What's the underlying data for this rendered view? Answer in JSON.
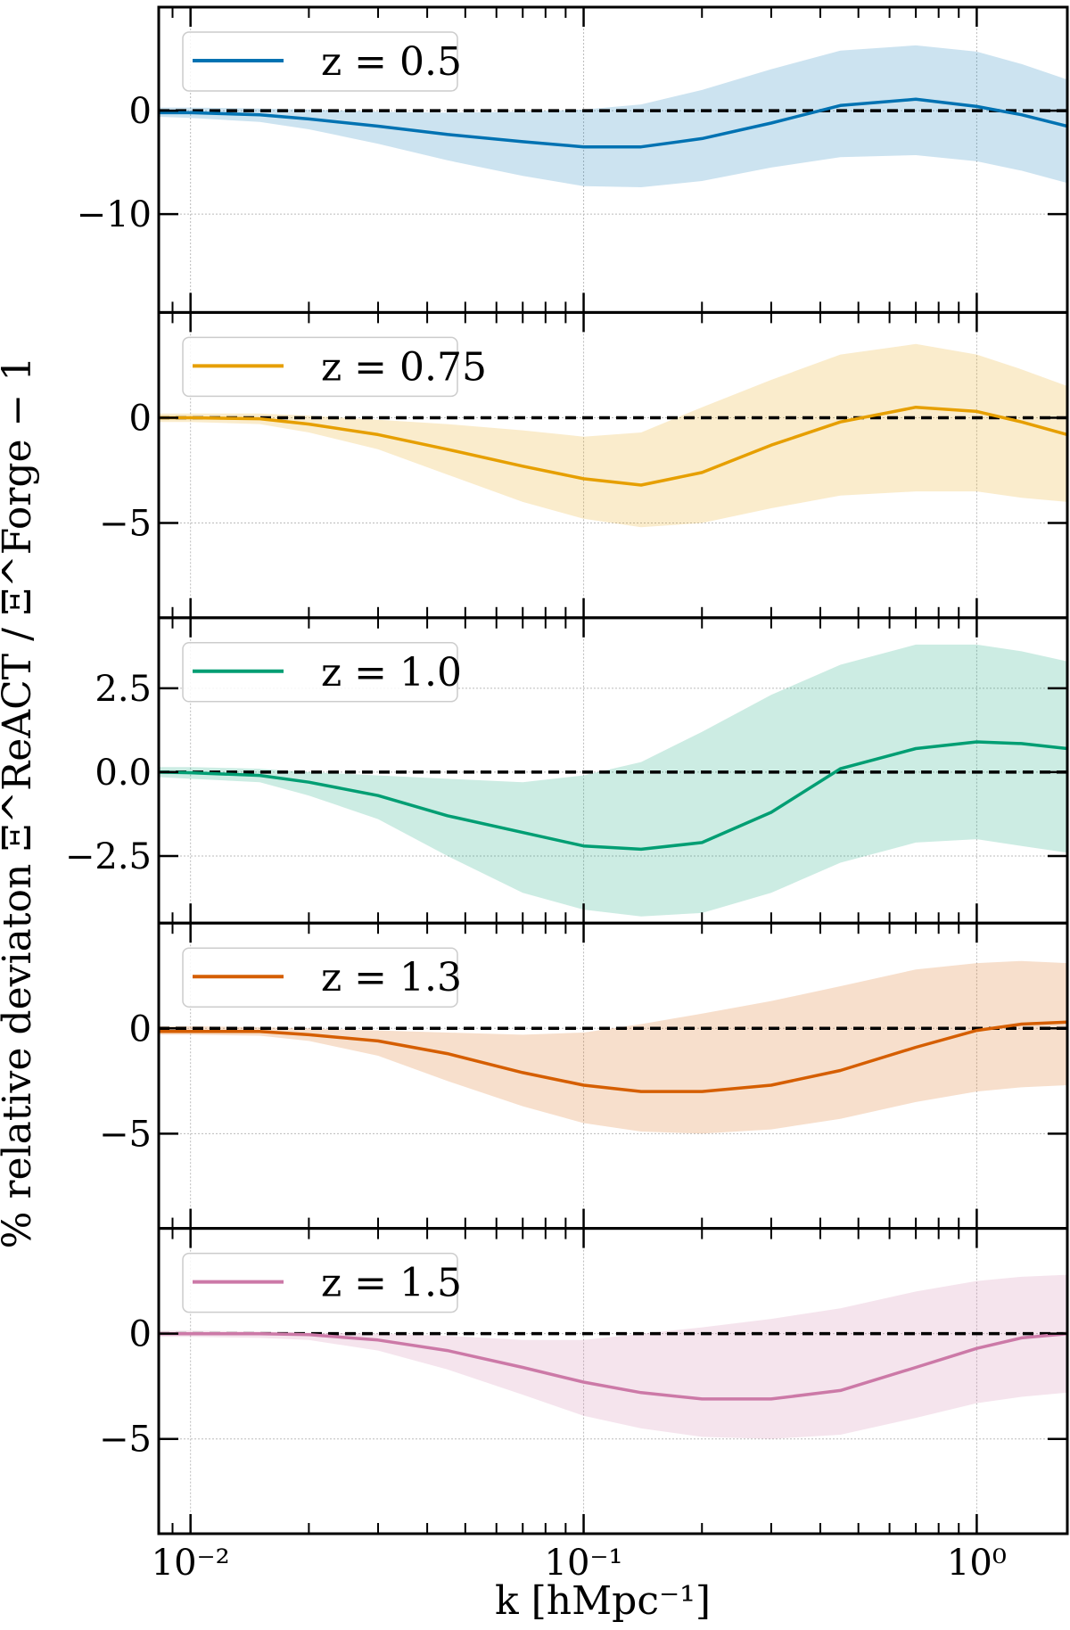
{
  "chart_data": {
    "type": "line",
    "xscale": "log",
    "xlim": [
      0.0083,
      1.7
    ],
    "xlabel": "k [hMpc⁻¹]",
    "ylabel": "% relative deviaton Ξ^ReACT / Ξ^Forge − 1",
    "x_tick_labels": [
      "10⁻²",
      "10⁻¹",
      "10⁰"
    ],
    "x": [
      0.0083,
      0.01,
      0.015,
      0.02,
      0.03,
      0.045,
      0.07,
      0.1,
      0.14,
      0.2,
      0.3,
      0.45,
      0.7,
      1.0,
      1.3,
      1.7
    ],
    "panels": [
      {
        "legend": "z = 0.5",
        "color": "#0072B2",
        "ylim": [
          -19.5,
          10
        ],
        "y_ticks": [
          0,
          -10
        ],
        "y_tick_labels": [
          "0",
          "−10"
        ],
        "values": [
          -0.2,
          -0.2,
          -0.4,
          -0.8,
          -1.5,
          -2.3,
          -3.0,
          -3.5,
          -3.5,
          -2.7,
          -1.2,
          0.5,
          1.1,
          0.4,
          -0.4,
          -1.5
        ],
        "band_upper": [
          0.3,
          0.3,
          0.2,
          0.1,
          -0.1,
          -0.2,
          -0.1,
          0.1,
          0.6,
          2.0,
          4.0,
          5.8,
          6.3,
          5.7,
          4.5,
          3.0
        ],
        "band_lower": [
          -0.6,
          -0.7,
          -1.1,
          -1.8,
          -3.2,
          -4.8,
          -6.3,
          -7.3,
          -7.4,
          -6.8,
          -5.5,
          -4.5,
          -4.3,
          -4.9,
          -5.8,
          -7.0
        ]
      },
      {
        "legend": "z = 0.75",
        "color": "#E69F00",
        "ylim": [
          -9.5,
          5
        ],
        "y_ticks": [
          0,
          -5
        ],
        "y_tick_labels": [
          "0",
          "−5"
        ],
        "values": [
          0,
          0,
          -0.05,
          -0.3,
          -0.8,
          -1.5,
          -2.3,
          -2.9,
          -3.2,
          -2.6,
          -1.3,
          -0.2,
          0.5,
          0.3,
          -0.2,
          -0.8
        ],
        "band_upper": [
          0.2,
          0.2,
          0.2,
          0.1,
          -0.1,
          -0.3,
          -0.6,
          -0.9,
          -0.7,
          0.5,
          1.8,
          3.0,
          3.5,
          3.0,
          2.3,
          1.5
        ],
        "band_lower": [
          -0.2,
          -0.2,
          -0.3,
          -0.7,
          -1.5,
          -2.7,
          -4.0,
          -4.8,
          -5.2,
          -5.0,
          -4.3,
          -3.7,
          -3.5,
          -3.5,
          -3.8,
          -4.0
        ]
      },
      {
        "legend": "z = 1.0",
        "color": "#009E73",
        "ylim": [
          -4.5,
          4.6
        ],
        "y_ticks": [
          2.5,
          0.0,
          -2.5
        ],
        "y_tick_labels": [
          "2.5",
          "0.0",
          "−2.5"
        ],
        "values": [
          0.0,
          -0.02,
          -0.1,
          -0.3,
          -0.7,
          -1.3,
          -1.8,
          -2.2,
          -2.3,
          -2.1,
          -1.2,
          0.1,
          0.7,
          0.9,
          0.85,
          0.7
        ],
        "band_upper": [
          0.15,
          0.15,
          0.1,
          0.0,
          -0.1,
          -0.2,
          -0.3,
          -0.1,
          0.3,
          1.2,
          2.3,
          3.2,
          3.8,
          3.8,
          3.6,
          3.3
        ],
        "band_lower": [
          -0.15,
          -0.2,
          -0.3,
          -0.7,
          -1.4,
          -2.5,
          -3.6,
          -4.1,
          -4.3,
          -4.2,
          -3.6,
          -2.7,
          -2.1,
          -2.0,
          -2.2,
          -2.4
        ]
      },
      {
        "legend": "z = 1.3",
        "color": "#D55E00",
        "ylim": [
          -9.5,
          5
        ],
        "y_ticks": [
          0,
          -5
        ],
        "y_tick_labels": [
          "0",
          "−5"
        ],
        "values": [
          -0.15,
          -0.15,
          -0.15,
          -0.3,
          -0.6,
          -1.2,
          -2.1,
          -2.7,
          -3.0,
          -3.0,
          -2.7,
          -2.0,
          -0.9,
          -0.1,
          0.2,
          0.3
        ],
        "band_upper": [
          0.1,
          0.1,
          0.05,
          0.0,
          -0.1,
          -0.2,
          -0.3,
          -0.2,
          0.2,
          0.7,
          1.3,
          2.0,
          2.8,
          3.1,
          3.2,
          3.1
        ],
        "band_lower": [
          -0.3,
          -0.3,
          -0.35,
          -0.6,
          -1.3,
          -2.5,
          -3.7,
          -4.5,
          -4.9,
          -5.0,
          -4.8,
          -4.3,
          -3.5,
          -3.0,
          -2.8,
          -2.7
        ]
      },
      {
        "legend": "z = 1.5",
        "color": "#CC79A7",
        "ylim": [
          -9.5,
          5
        ],
        "y_ticks": [
          0,
          -5
        ],
        "y_tick_labels": [
          "0",
          "−5"
        ],
        "values": [
          0.0,
          0.0,
          0.0,
          -0.05,
          -0.3,
          -0.8,
          -1.6,
          -2.3,
          -2.8,
          -3.1,
          -3.1,
          -2.7,
          -1.6,
          -0.7,
          -0.2,
          0.0
        ],
        "band_upper": [
          0.15,
          0.15,
          0.1,
          0.05,
          0.0,
          -0.1,
          -0.3,
          -0.3,
          0.0,
          0.3,
          0.7,
          1.2,
          2.0,
          2.5,
          2.7,
          2.8
        ],
        "band_lower": [
          -0.15,
          -0.15,
          -0.2,
          -0.3,
          -0.8,
          -1.7,
          -2.9,
          -3.9,
          -4.5,
          -4.9,
          -5.0,
          -4.8,
          -4.0,
          -3.3,
          -3.0,
          -2.8
        ]
      }
    ]
  }
}
